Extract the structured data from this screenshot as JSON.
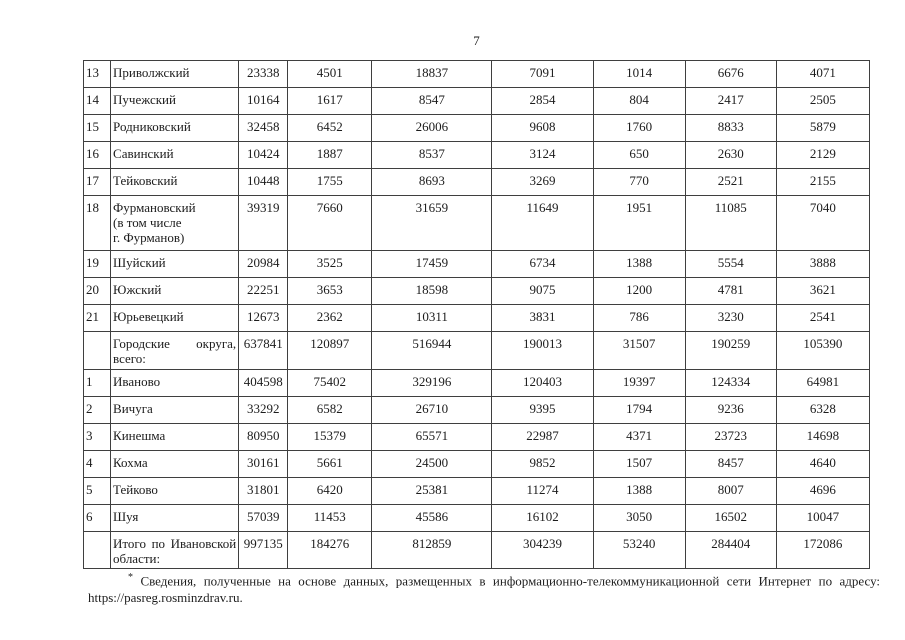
{
  "page": {
    "number": "7"
  },
  "table": {
    "rows": [
      {
        "num": "13",
        "name": "Приволжский",
        "values": [
          "23338",
          "4501",
          "18837",
          "7091",
          "1014",
          "6676",
          "4071"
        ]
      },
      {
        "num": "14",
        "name": "Пучежский",
        "values": [
          "10164",
          "1617",
          "8547",
          "2854",
          "804",
          "2417",
          "2505"
        ]
      },
      {
        "num": "15",
        "name": "Родниковский",
        "values": [
          "32458",
          "6452",
          "26006",
          "9608",
          "1760",
          "8833",
          "5879"
        ]
      },
      {
        "num": "16",
        "name": "Савинский",
        "values": [
          "10424",
          "1887",
          "8537",
          "3124",
          "650",
          "2630",
          "2129"
        ]
      },
      {
        "num": "17",
        "name": "Тейковский",
        "values": [
          "10448",
          "1755",
          "8693",
          "3269",
          "770",
          "2521",
          "2155"
        ]
      },
      {
        "num": "18",
        "name": "Фурмановский\n(в том числе\nг. Фурманов)",
        "multiline": true,
        "values": [
          "39319",
          "7660",
          "31659",
          "11649",
          "1951",
          "11085",
          "7040"
        ]
      },
      {
        "num": "19",
        "name": "Шуйский",
        "values": [
          "20984",
          "3525",
          "17459",
          "6734",
          "1388",
          "5554",
          "3888"
        ]
      },
      {
        "num": "20",
        "name": "Южский",
        "values": [
          "22251",
          "3653",
          "18598",
          "9075",
          "1200",
          "4781",
          "3621"
        ]
      },
      {
        "num": "21",
        "name": "Юрьевецкий",
        "values": [
          "12673",
          "2362",
          "10311",
          "3831",
          "786",
          "3230",
          "2541"
        ]
      },
      {
        "num": "",
        "name": "Городские округа, всего:",
        "justify": true,
        "values": [
          "637841",
          "120897",
          "516944",
          "190013",
          "31507",
          "190259",
          "105390"
        ]
      },
      {
        "num": "1",
        "name": "Иваново",
        "values": [
          "404598",
          "75402",
          "329196",
          "120403",
          "19397",
          "124334",
          "64981"
        ]
      },
      {
        "num": "2",
        "name": "Вичуга",
        "values": [
          "33292",
          "6582",
          "26710",
          "9395",
          "1794",
          "9236",
          "6328"
        ]
      },
      {
        "num": "3",
        "name": "Кинешма",
        "values": [
          "80950",
          "15379",
          "65571",
          "22987",
          "4371",
          "23723",
          "14698"
        ]
      },
      {
        "num": "4",
        "name": "Кохма",
        "values": [
          "30161",
          "5661",
          "24500",
          "9852",
          "1507",
          "8457",
          "4640"
        ]
      },
      {
        "num": "5",
        "name": "Тейково",
        "values": [
          "31801",
          "6420",
          "25381",
          "11274",
          "1388",
          "8007",
          "4696"
        ]
      },
      {
        "num": "6",
        "name": "Шуя",
        "values": [
          "57039",
          "11453",
          "45586",
          "16102",
          "3050",
          "16502",
          "10047"
        ]
      },
      {
        "num": "",
        "name": "Итого по Ивановской области:",
        "justify": true,
        "values": [
          "997135",
          "184276",
          "812859",
          "304239",
          "53240",
          "284404",
          "172086"
        ]
      }
    ]
  },
  "footnote": {
    "marker": "*",
    "text": "Сведения, полученные на основе данных, размещенных в информационно-телекоммуникационной сети Интернет по адресу:",
    "url": "https://pasreg.rosminzdrav.ru."
  }
}
